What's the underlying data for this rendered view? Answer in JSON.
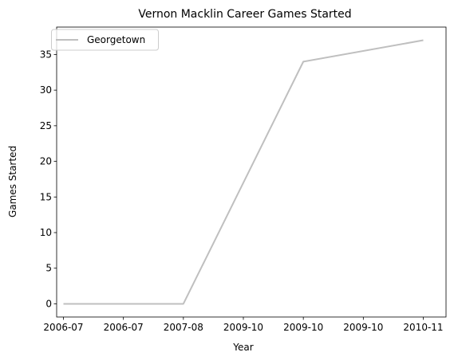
{
  "chart_data": {
    "type": "line",
    "title": "Vernon Macklin Career Games Started",
    "xlabel": "Year",
    "ylabel": "Games Started",
    "x_ticks": [
      "2006-07",
      "2006-07",
      "2007-08",
      "2009-10",
      "2009-10",
      "2009-10",
      "2010-11"
    ],
    "y_ticks": [
      0,
      5,
      10,
      15,
      20,
      25,
      30,
      35
    ],
    "ylim": [
      -1.85,
      38.85
    ],
    "grid": false,
    "legend_position": "top-left",
    "series": [
      {
        "name": "Georgetown",
        "color": "#bfbfbf",
        "points": [
          {
            "x": "2006-07",
            "y": 0
          },
          {
            "x": "2007-08",
            "y": 0
          },
          {
            "x": "2009-10",
            "y": 34
          },
          {
            "x": "2010-11",
            "y": 37
          }
        ]
      }
    ]
  }
}
